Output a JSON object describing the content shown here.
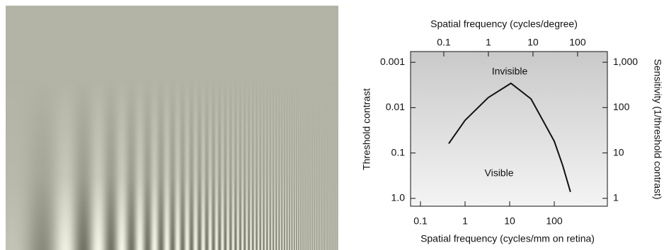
{
  "chart_data": {
    "type": "line",
    "xlabel": "Spatial frequency (cycles/mm on retina)",
    "x2label": "Spatial frequency (cycles/degree)",
    "ylabel": "Threshold contrast",
    "y2label": "Sensitivity (1/threshold contrast)",
    "annotations": [
      "Invisible",
      "Visible"
    ],
    "xscale": "log",
    "yscale": "log",
    "x": [
      0.43,
      1,
      3.3,
      10.7,
      30,
      60,
      100,
      155,
      230
    ],
    "values": [
      0.062,
      0.019,
      0.006,
      0.0029,
      0.0064,
      0.022,
      0.055,
      0.19,
      0.72
    ],
    "color": "#111111",
    "xlim": [
      0.06,
      1550
    ],
    "xticks": [
      0.1,
      1,
      10,
      100
    ],
    "x2lim": [
      0.018,
      465
    ],
    "x2ticks": [
      0.1,
      1,
      10,
      100
    ],
    "ylim": [
      1.49,
      0.00058
    ],
    "yticks": [
      0.001,
      0.01,
      0.1,
      {
        "value": 1,
        "label": "1.0"
      }
    ],
    "y2lim": [
      0.67,
      1720
    ],
    "y2ticks": [
      {
        "value": 1000,
        "label": "1,000"
      },
      100,
      10,
      1
    ],
    "grid": false
  }
}
